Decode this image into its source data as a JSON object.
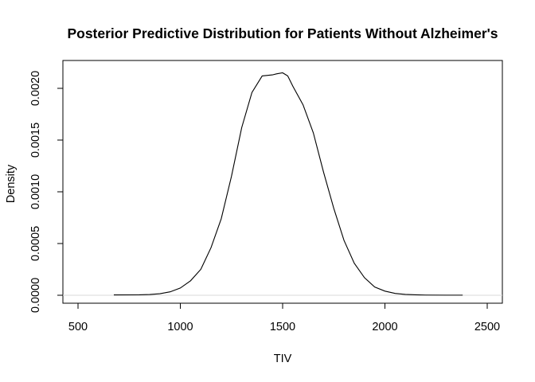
{
  "chart_data": {
    "type": "line",
    "title": "Posterior Predictive Distribution for Patients Without Alzheimer's",
    "xlabel": "TIV",
    "ylabel": "Density",
    "xlim": [
      430,
      2510
    ],
    "ylim": [
      0,
      0.00216
    ],
    "x_ticks": [
      500,
      1000,
      1500,
      2000,
      2500
    ],
    "x_tick_labels": [
      "500",
      "1000",
      "1500",
      "2000",
      "2500"
    ],
    "y_ticks": [
      0,
      0.0005,
      0.001,
      0.0015,
      0.002
    ],
    "y_tick_labels": [
      "0.0000",
      "0.0005",
      "0.0010",
      "0.0015",
      "0.0020"
    ],
    "baseline": true,
    "box": true,
    "series": [
      {
        "x": [
          675,
          800,
          850,
          900,
          950,
          1000,
          1050,
          1100,
          1150,
          1200,
          1250,
          1300,
          1350,
          1400,
          1450,
          1470,
          1500,
          1525,
          1550,
          1600,
          1650,
          1700,
          1750,
          1800,
          1850,
          1900,
          1950,
          2000,
          2050,
          2100,
          2150,
          2200,
          2300,
          2380
        ],
        "y": [
          3e-06,
          4e-06,
          7e-06,
          1.5e-05,
          3.3e-05,
          7e-05,
          0.00014,
          0.00025,
          0.00046,
          0.00074,
          0.00115,
          0.00162,
          0.00196,
          0.00212,
          0.00213,
          0.00214,
          0.00215,
          0.00212,
          0.00202,
          0.00184,
          0.00157,
          0.00119,
          0.00084,
          0.00053,
          0.00031,
          0.00017,
          8e-05,
          4e-05,
          1.8e-05,
          8e-06,
          4e-06,
          2e-06,
          1e-06,
          1e-06
        ]
      }
    ]
  }
}
